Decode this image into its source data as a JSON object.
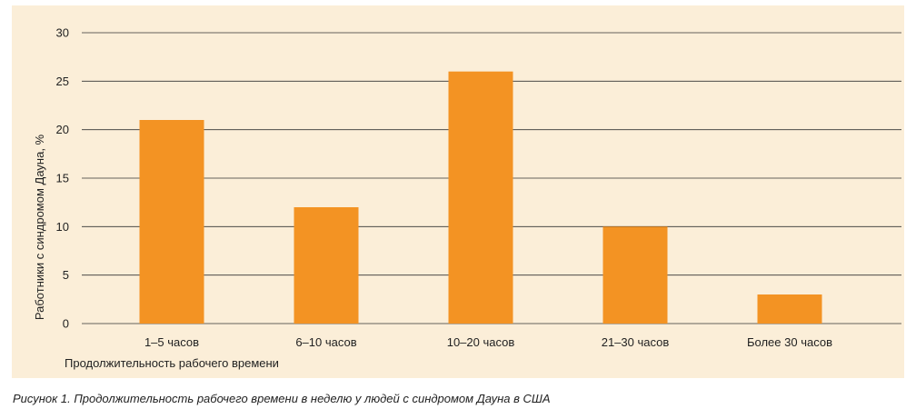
{
  "chart_data": {
    "type": "bar",
    "categories": [
      "1–5 часов",
      "6–10 часов",
      "10–20 часов",
      "21–30 часов",
      "Более 30 часов"
    ],
    "values": [
      21,
      12,
      26,
      10,
      3
    ],
    "yticks": [
      0,
      5,
      10,
      15,
      20,
      25,
      30
    ],
    "ylim": [
      0,
      30
    ],
    "xlabel": "Продолжительность рабочего времени",
    "ylabel": "Работники с синдромом Дауна, %",
    "grid": true,
    "colors": {
      "bar": "#f39323",
      "grid": "#333333",
      "panel": "#fbeed8"
    }
  },
  "caption": "Рисунок 1. Продолжительность рабочего времени в неделю у людей с синдромом Дауна в США"
}
